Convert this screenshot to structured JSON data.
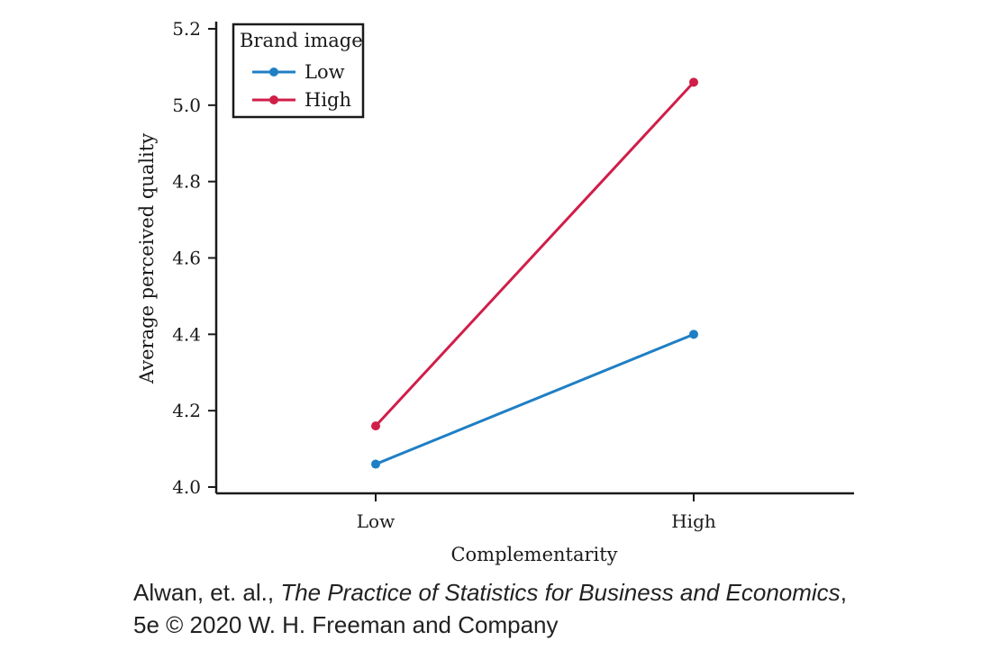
{
  "chart_data": {
    "type": "line",
    "categories": [
      "Low",
      "High"
    ],
    "xlabel": "Complementarity",
    "ylabel": "Average perceived quality",
    "ylim": [
      4.0,
      5.2
    ],
    "yticks": [
      "4.0",
      "4.2",
      "4.4",
      "4.6",
      "4.8",
      "5.0",
      "5.2"
    ],
    "legend_title": "Brand image",
    "legend_position": "top-left",
    "grid": false,
    "series": [
      {
        "name": "Low",
        "values": [
          4.06,
          4.4
        ],
        "color": "#1f7fc4"
      },
      {
        "name": "High",
        "values": [
          4.16,
          5.06
        ],
        "color": "#d01e49"
      }
    ]
  },
  "credit": {
    "authors": "Alwan, et. al., ",
    "book_title": "The Practice of Statistics for Business and Economics",
    "line1_end": ",",
    "line2": "5e © 2020 W. H. Freeman and Company"
  }
}
